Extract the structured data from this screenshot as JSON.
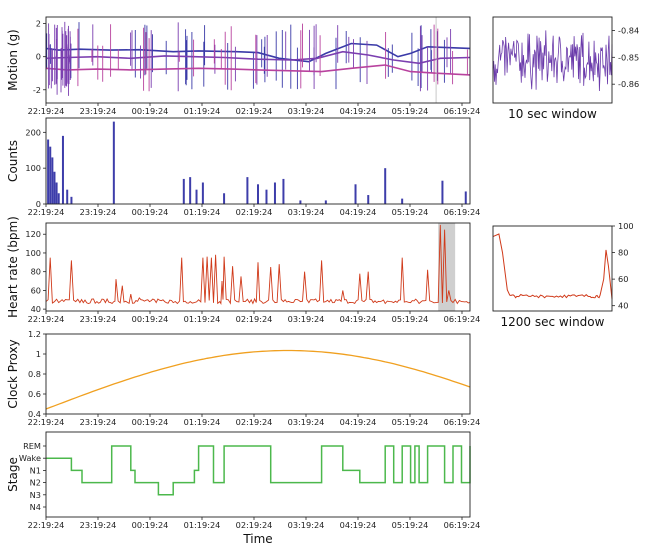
{
  "chart_data": {
    "time_ticks": [
      "22:19:24",
      "23:19:24",
      "00:19:24",
      "01:19:24",
      "02:19:24",
      "03:19:24",
      "04:19:24",
      "05:19:24",
      "06:19:24"
    ],
    "xlabel": "Time",
    "panels": [
      {
        "id": "motion",
        "type": "line",
        "ylabel": "Motion (g)",
        "ylim": [
          -2.8,
          2.4
        ],
        "yticks": [
          2,
          0,
          -2
        ],
        "colors": [
          "#3a3aa8",
          "#7b3fb0",
          "#b8429e"
        ],
        "series": [
          {
            "x": [
              0.0,
              0.03,
              0.08,
              0.15,
              0.22,
              0.3,
              0.36,
              0.45,
              0.5,
              0.55,
              0.62,
              0.66,
              0.72,
              0.78,
              0.83,
              0.86,
              0.9,
              1.0
            ],
            "values": [
              0.5,
              0.4,
              0.45,
              0.4,
              0.42,
              0.3,
              0.35,
              0.3,
              0.25,
              -0.1,
              -0.3,
              0.2,
              0.8,
              0.7,
              0.0,
              0.2,
              0.6,
              0.5
            ]
          },
          {
            "x": [
              0.0,
              0.05,
              0.12,
              0.2,
              0.28,
              0.35,
              0.42,
              0.5,
              0.58,
              0.64,
              0.7,
              0.76,
              0.82,
              0.88,
              0.93,
              1.0
            ],
            "values": [
              -0.1,
              -0.05,
              0.0,
              -0.1,
              0.05,
              0.0,
              -0.05,
              -0.15,
              -0.2,
              -0.1,
              0.3,
              0.1,
              -0.2,
              -0.4,
              -0.1,
              -0.05
            ]
          },
          {
            "x": [
              0.0,
              0.05,
              0.12,
              0.2,
              0.28,
              0.36,
              0.44,
              0.5,
              0.58,
              0.65,
              0.72,
              0.8,
              0.86,
              0.92,
              1.0
            ],
            "values": [
              -0.7,
              -0.8,
              -0.75,
              -0.8,
              -0.75,
              -0.7,
              -0.75,
              -0.8,
              -0.85,
              -0.9,
              -0.7,
              -0.5,
              -0.9,
              -1.0,
              -1.1
            ]
          }
        ]
      },
      {
        "id": "counts",
        "type": "bar",
        "ylabel": "Counts",
        "ylim": [
          0,
          240
        ],
        "yticks": [
          200,
          100,
          0
        ],
        "colors": [
          "#3d3daa"
        ],
        "x": [
          0.005,
          0.01,
          0.015,
          0.02,
          0.025,
          0.03,
          0.04,
          0.05,
          0.06,
          0.16,
          0.325,
          0.34,
          0.355,
          0.37,
          0.42,
          0.475,
          0.5,
          0.52,
          0.54,
          0.56,
          0.6,
          0.66,
          0.73,
          0.76,
          0.8,
          0.84,
          0.935,
          0.99
        ],
        "values": [
          180,
          160,
          130,
          90,
          60,
          30,
          190,
          40,
          20,
          230,
          70,
          75,
          40,
          60,
          30,
          75,
          55,
          40,
          60,
          70,
          10,
          10,
          55,
          25,
          100,
          15,
          65,
          35
        ]
      },
      {
        "id": "heart_rate",
        "type": "line",
        "ylabel": "Heart rate (bpm)",
        "ylim": [
          38,
          132
        ],
        "yticks": [
          120,
          100,
          80,
          60,
          40
        ],
        "colors": [
          "#d03a1a"
        ],
        "highlight_x": [
          0.925,
          0.965
        ],
        "x": [
          0.0,
          0.01,
          0.02,
          0.03,
          0.05,
          0.06,
          0.07,
          0.08,
          0.1,
          0.12,
          0.14,
          0.16,
          0.165,
          0.18,
          0.2,
          0.22,
          0.24,
          0.26,
          0.28,
          0.3,
          0.31,
          0.32,
          0.34,
          0.35,
          0.36,
          0.37,
          0.38,
          0.39,
          0.4,
          0.41,
          0.415,
          0.42,
          0.43,
          0.44,
          0.45,
          0.46,
          0.47,
          0.48,
          0.5,
          0.52,
          0.53,
          0.54,
          0.55,
          0.56,
          0.58,
          0.6,
          0.61,
          0.62,
          0.64,
          0.65,
          0.66,
          0.68,
          0.7,
          0.72,
          0.74,
          0.75,
          0.76,
          0.78,
          0.8,
          0.81,
          0.82,
          0.84,
          0.85,
          0.86,
          0.88,
          0.9,
          0.91,
          0.92,
          0.93,
          0.94,
          0.95,
          0.96,
          0.97,
          0.98,
          1.0
        ],
        "values": [
          48,
          95,
          48,
          47,
          50,
          92,
          48,
          47,
          46,
          48,
          47,
          48,
          72,
          65,
          56,
          52,
          50,
          47,
          48,
          47,
          46,
          95,
          48,
          47,
          50,
          95,
          96,
          95,
          98,
          48,
          70,
          96,
          50,
          86,
          48,
          75,
          48,
          47,
          90,
          48,
          85,
          47,
          88,
          48,
          47,
          48,
          80,
          47,
          48,
          92,
          48,
          47,
          60,
          47,
          78,
          48,
          80,
          47,
          46,
          48,
          47,
          95,
          48,
          47,
          46,
          82,
          48,
          47,
          130,
          125,
          60,
          47,
          46,
          48,
          47
        ]
      },
      {
        "id": "clock_proxy",
        "type": "line",
        "ylabel": "Clock Proxy",
        "ylim": [
          0.4,
          1.2
        ],
        "yticks": [
          1.2,
          1.0,
          0.8,
          0.6,
          0.4
        ],
        "colors": [
          "#f0a020"
        ],
        "x": [
          0.0,
          0.1,
          0.2,
          0.3,
          0.4,
          0.5,
          0.55,
          0.6,
          0.7,
          0.8,
          0.9,
          1.0
        ],
        "values": [
          0.45,
          0.6,
          0.75,
          0.87,
          0.96,
          1.02,
          1.03,
          1.03,
          0.99,
          0.9,
          0.77,
          0.6
        ]
      },
      {
        "id": "stage",
        "type": "line",
        "ylabel": "Stage",
        "ylim": [
          -0.4,
          5.6
        ],
        "yticks": [
          "REM",
          "Wake",
          "N1",
          "N2",
          "N3",
          "N4"
        ],
        "colors": [
          "#4cb84c"
        ],
        "x": [
          0.0,
          0.05,
          0.06,
          0.08,
          0.085,
          0.15,
          0.155,
          0.17,
          0.2,
          0.21,
          0.26,
          0.265,
          0.27,
          0.3,
          0.32,
          0.35,
          0.36,
          0.39,
          0.395,
          0.42,
          0.43,
          0.52,
          0.53,
          0.58,
          0.6,
          0.64,
          0.65,
          0.7,
          0.72,
          0.74,
          0.76,
          0.78,
          0.8,
          0.82,
          0.84,
          0.86,
          0.87,
          0.88,
          0.9,
          0.92,
          0.94,
          0.96,
          0.98,
          1.0
        ],
        "values": [
          4,
          4,
          3,
          3,
          2,
          2,
          5,
          5,
          3,
          2,
          2,
          1,
          1,
          2,
          2,
          3,
          5,
          5,
          2,
          5,
          5,
          5,
          2,
          2,
          2,
          2,
          5,
          3,
          3,
          2,
          2,
          2,
          5,
          2,
          5,
          2,
          5,
          2,
          5,
          5,
          2,
          5,
          2,
          5
        ]
      }
    ],
    "insets": [
      {
        "id": "motion_window",
        "caption": "10 sec window",
        "yticks": [
          -0.84,
          -0.85,
          -0.86
        ],
        "ylim": [
          -0.867,
          -0.835
        ],
        "color": "#6a3aaa"
      },
      {
        "id": "hr_window",
        "caption": "1200 sec window",
        "yticks": [
          100,
          80,
          60,
          40
        ],
        "ylim": [
          36,
          100
        ],
        "color": "#d03a1a",
        "x": [
          0.0,
          0.05,
          0.08,
          0.12,
          0.14,
          0.2,
          0.3,
          0.4,
          0.5,
          0.6,
          0.7,
          0.8,
          0.85,
          0.9,
          0.93,
          0.95,
          0.97,
          1.0
        ],
        "values": [
          92,
          94,
          80,
          52,
          48,
          47,
          47,
          48,
          47,
          48,
          47,
          47,
          46,
          48,
          60,
          82,
          70,
          45
        ]
      }
    ]
  }
}
